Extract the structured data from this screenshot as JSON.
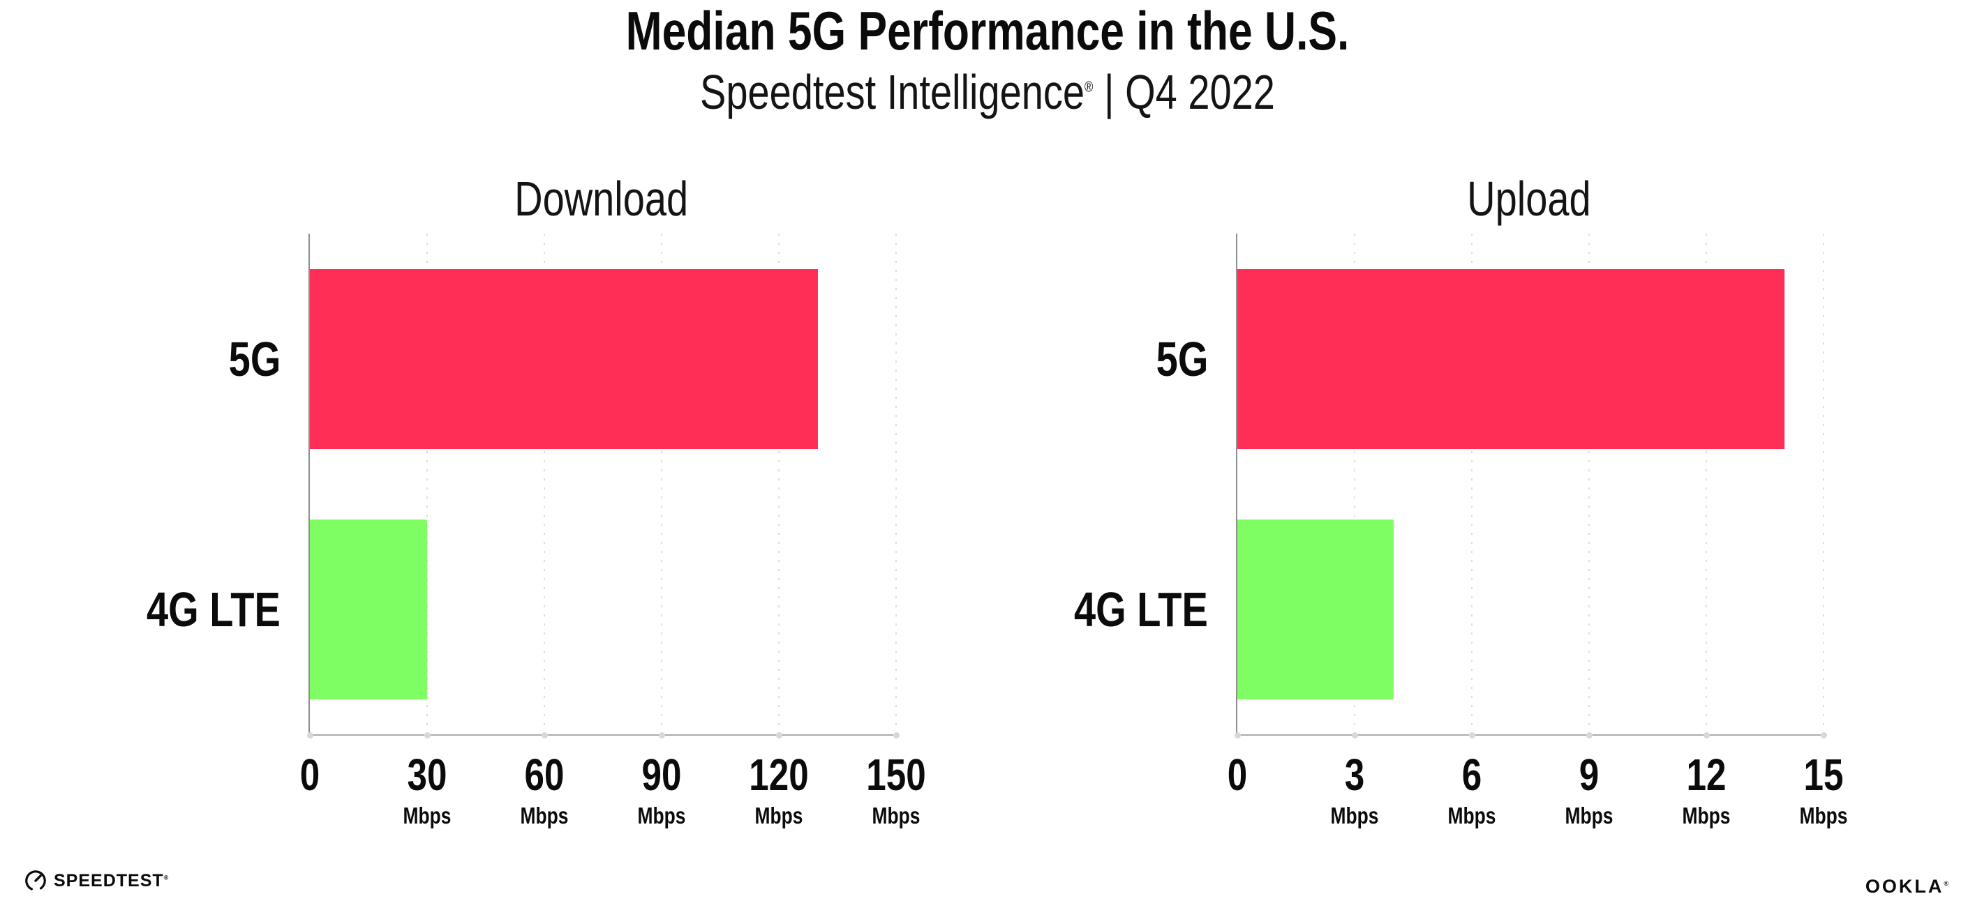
{
  "header": {
    "title": "Median 5G Performance in the U.S.",
    "subtitle_brand": "Speedtest Intelligence",
    "subtitle_reg": "®",
    "subtitle_rest": " | Q4 2022"
  },
  "colors": {
    "bar_5g": "#FF2E56",
    "bar_4g_lte": "#7EFE63",
    "gridline": "#DCDCE6",
    "axis": "#9A9A9A",
    "text": "#0B0B0B"
  },
  "chart_data": [
    {
      "type": "bar",
      "orientation": "horizontal",
      "title": "Download",
      "categories": [
        "5G",
        "4G LTE"
      ],
      "values": [
        130,
        30
      ],
      "unit": "Mbps",
      "xlim": [
        0,
        150
      ],
      "xticks": [
        0,
        30,
        60,
        90,
        120,
        150
      ],
      "series_colors": [
        "#FF2E56",
        "#7EFE63"
      ],
      "grid": "dotted-vertical",
      "legend": "none"
    },
    {
      "type": "bar",
      "orientation": "horizontal",
      "title": "Upload",
      "categories": [
        "5G",
        "4G LTE"
      ],
      "values": [
        14,
        4
      ],
      "unit": "Mbps",
      "xlim": [
        0,
        15
      ],
      "xticks": [
        0,
        3,
        6,
        9,
        12,
        15
      ],
      "series_colors": [
        "#FF2E56",
        "#7EFE63"
      ],
      "grid": "dotted-vertical",
      "legend": "none"
    }
  ],
  "footer": {
    "speedtest_label": "SPEEDTEST",
    "speedtest_reg": "®",
    "ookla_label": "OOKLA",
    "ookla_reg": "®"
  }
}
